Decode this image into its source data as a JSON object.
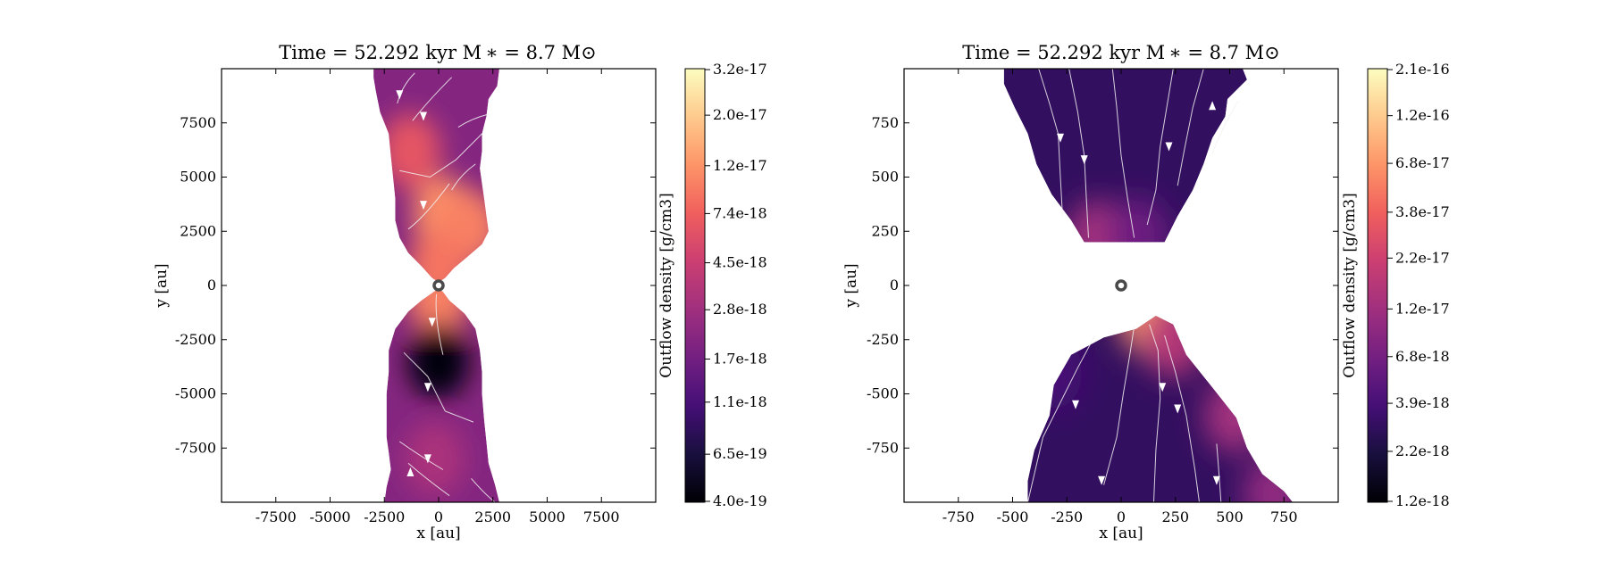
{
  "figure": {
    "background": "#ffffff"
  },
  "colormap": {
    "name": "magma",
    "stops": [
      "#000004",
      "#180f3d",
      "#440f76",
      "#721f81",
      "#9e2f7f",
      "#cd4071",
      "#f1605d",
      "#fd9668",
      "#feca8d",
      "#fcfdbf"
    ]
  },
  "chart_data": [
    {
      "type": "heatmap",
      "title": "Time = 52.292 kyr    M ∗ = 8.7 M⊙",
      "xlabel": "x [au]",
      "ylabel": "y [au]",
      "colorbar_label": "Outflow density [g/cm3]",
      "xlim": [
        -10000,
        10000
      ],
      "ylim": [
        -10000,
        10000
      ],
      "xticks": [
        -7500,
        -5000,
        -2500,
        0,
        2500,
        5000,
        7500
      ],
      "xtick_labels": [
        "-7500",
        "-5000",
        "-2500",
        "0",
        "2500",
        "5000",
        "7500"
      ],
      "yticks": [
        7500,
        5000,
        2500,
        0,
        -2500,
        -5000,
        -7500
      ],
      "ytick_labels": [
        "7500",
        "5000",
        "2500",
        "0",
        "-2500",
        "-5000",
        "-7500"
      ],
      "colorbar_tick_labels": [
        "3.2e-17",
        "2.0e-17",
        "1.2e-17",
        "7.4e-18",
        "4.5e-18",
        "2.8e-18",
        "1.7e-18",
        "1.1e-18",
        "6.5e-19",
        "4.0e-19"
      ],
      "colorbar_range": [
        4e-19,
        3.2e-17
      ],
      "colorbar_scale": "log",
      "star_position": [
        0,
        0
      ],
      "upper_lobe_outline": [
        [
          -3000,
          10000
        ],
        [
          2800,
          10000
        ],
        [
          2700,
          9200
        ],
        [
          2300,
          8600
        ],
        [
          2200,
          7800
        ],
        [
          2000,
          7000
        ],
        [
          2000,
          6200
        ],
        [
          1900,
          5400
        ],
        [
          2000,
          4700
        ],
        [
          2100,
          4000
        ],
        [
          2200,
          3200
        ],
        [
          2300,
          2500
        ],
        [
          2000,
          1900
        ],
        [
          1300,
          1300
        ],
        [
          700,
          800
        ],
        [
          300,
          350
        ],
        [
          0,
          150
        ],
        [
          -300,
          350
        ],
        [
          -800,
          900
        ],
        [
          -1400,
          1500
        ],
        [
          -1800,
          2200
        ],
        [
          -2000,
          3000
        ],
        [
          -2000,
          4000
        ],
        [
          -2100,
          5000
        ],
        [
          -2200,
          6000
        ],
        [
          -2300,
          7000
        ],
        [
          -2700,
          8000
        ],
        [
          -2900,
          9000
        ],
        [
          -3000,
          9600
        ]
      ],
      "lower_lobe_outline": [
        [
          -300,
          -350
        ],
        [
          0,
          -150
        ],
        [
          200,
          -300
        ],
        [
          500,
          -700
        ],
        [
          1200,
          -1300
        ],
        [
          1700,
          -2000
        ],
        [
          1900,
          -3000
        ],
        [
          2000,
          -4000
        ],
        [
          2000,
          -5000
        ],
        [
          2100,
          -6200
        ],
        [
          2200,
          -7200
        ],
        [
          2300,
          -8200
        ],
        [
          2600,
          -9200
        ],
        [
          2800,
          -10000
        ],
        [
          -2500,
          -10000
        ],
        [
          -2400,
          -9300
        ],
        [
          -2200,
          -8500
        ],
        [
          -2300,
          -7700
        ],
        [
          -2400,
          -7000
        ],
        [
          -2400,
          -6000
        ],
        [
          -2400,
          -5000
        ],
        [
          -2300,
          -4000
        ],
        [
          -2300,
          -3000
        ],
        [
          -2000,
          -2000
        ],
        [
          -1400,
          -1200
        ],
        [
          -800,
          -700
        ]
      ],
      "density_hotspots": [
        {
          "x": 200,
          "y": 3300,
          "log_density": -16.95
        },
        {
          "x": 1400,
          "y": 2700,
          "log_density": -17.0
        },
        {
          "x": -1300,
          "y": 6200,
          "log_density": -17.2
        },
        {
          "x": 0,
          "y": 800,
          "log_density": -17.05
        },
        {
          "x": 0,
          "y": -600,
          "log_density": -17.0
        },
        {
          "x": 0,
          "y": -3500,
          "log_density": -18.35
        },
        {
          "x": -200,
          "y": -8000,
          "log_density": -17.5
        }
      ],
      "streamlines": [
        [
          [
            -1100,
            9800
          ],
          [
            -1700,
            9200
          ],
          [
            -1900,
            8400
          ]
        ],
        [
          [
            600,
            9600
          ],
          [
            -500,
            8500
          ],
          [
            -1200,
            7600
          ]
        ],
        [
          [
            2300,
            7900
          ],
          [
            1500,
            7700
          ],
          [
            900,
            7300
          ]
        ],
        [
          [
            1700,
            5600
          ],
          [
            1000,
            5100
          ],
          [
            600,
            4400
          ]
        ],
        [
          [
            2000,
            7000
          ],
          [
            800,
            5800
          ],
          [
            -400,
            5000
          ],
          [
            -1800,
            5300
          ]
        ],
        [
          [
            -1400,
            2600
          ],
          [
            -600,
            3200
          ],
          [
            500,
            4700
          ]
        ],
        [
          [
            -100,
            -400
          ],
          [
            -200,
            -1500
          ],
          [
            200,
            -3200
          ]
        ],
        [
          [
            -1600,
            -3100
          ],
          [
            -500,
            -4200
          ],
          [
            300,
            -5800
          ],
          [
            1600,
            -6300
          ]
        ],
        [
          [
            -1800,
            -7200
          ],
          [
            -800,
            -7900
          ],
          [
            200,
            -8500
          ]
        ],
        [
          [
            -1400,
            -8200
          ],
          [
            -600,
            -8900
          ],
          [
            500,
            -9700
          ]
        ],
        [
          [
            1500,
            -8900
          ],
          [
            2100,
            -9600
          ],
          [
            2600,
            -10000
          ]
        ]
      ],
      "streamline_arrows": [
        {
          "x": -1800,
          "y": 8800,
          "direction": "down"
        },
        {
          "x": -700,
          "y": 7800,
          "direction": "down"
        },
        {
          "x": -700,
          "y": 3700,
          "direction": "down"
        },
        {
          "x": -300,
          "y": -1700,
          "direction": "down"
        },
        {
          "x": -500,
          "y": -4700,
          "direction": "down"
        },
        {
          "x": -500,
          "y": -8000,
          "direction": "down"
        },
        {
          "x": -1300,
          "y": -8600,
          "direction": "up"
        }
      ]
    },
    {
      "type": "heatmap",
      "title": "Time = 52.292 kyr    M ∗ = 8.7 M⊙",
      "xlabel": "x [au]",
      "ylabel": "y [au]",
      "colorbar_label": "Outflow density [g/cm3]",
      "xlim": [
        -1000,
        1000
      ],
      "ylim": [
        -1000,
        1000
      ],
      "xticks": [
        -750,
        -500,
        -250,
        0,
        250,
        500,
        750
      ],
      "xtick_labels": [
        "-750",
        "-500",
        "-250",
        "0",
        "250",
        "500",
        "750"
      ],
      "yticks": [
        750,
        500,
        250,
        0,
        -250,
        -500,
        -750
      ],
      "ytick_labels": [
        "750",
        "500",
        "250",
        "0",
        "-250",
        "-500",
        "-750"
      ],
      "colorbar_tick_labels": [
        "2.1e-16",
        "1.2e-16",
        "6.8e-17",
        "3.8e-17",
        "2.2e-17",
        "1.2e-17",
        "6.8e-18",
        "3.9e-18",
        "2.2e-18",
        "1.2e-18"
      ],
      "colorbar_range": [
        1.2e-18,
        2.1e-16
      ],
      "colorbar_scale": "log",
      "star_position": [
        0,
        0
      ],
      "upper_lobe_outline": [
        [
          -540,
          1000
        ],
        [
          560,
          1000
        ],
        [
          580,
          950
        ],
        [
          490,
          860
        ],
        [
          480,
          780
        ],
        [
          420,
          680
        ],
        [
          380,
          560
        ],
        [
          330,
          440
        ],
        [
          260,
          320
        ],
        [
          200,
          200
        ],
        [
          -170,
          200
        ],
        [
          -230,
          300
        ],
        [
          -320,
          420
        ],
        [
          -390,
          560
        ],
        [
          -430,
          700
        ],
        [
          -490,
          820
        ],
        [
          -540,
          930
        ]
      ],
      "lower_lobe_outline": [
        [
          -430,
          -1000
        ],
        [
          -430,
          -900
        ],
        [
          -400,
          -760
        ],
        [
          -330,
          -600
        ],
        [
          -310,
          -460
        ],
        [
          -230,
          -320
        ],
        [
          -80,
          -240
        ],
        [
          70,
          -200
        ],
        [
          160,
          -140
        ],
        [
          240,
          -180
        ],
        [
          300,
          -320
        ],
        [
          420,
          -470
        ],
        [
          530,
          -610
        ],
        [
          580,
          -750
        ],
        [
          650,
          -870
        ],
        [
          750,
          -950
        ],
        [
          790,
          -1000
        ]
      ],
      "density_hotspots": [
        {
          "x": -110,
          "y": 220,
          "log_density": -16.9
        },
        {
          "x": 80,
          "y": 230,
          "log_density": -17.2
        },
        {
          "x": 130,
          "y": -150,
          "log_density": -16.2
        },
        {
          "x": 240,
          "y": -250,
          "log_density": -16.8
        },
        {
          "x": 520,
          "y": -600,
          "log_density": -16.9
        },
        {
          "x": 700,
          "y": -960,
          "log_density": -17.0
        },
        {
          "x": -320,
          "y": -400,
          "log_density": -17.4
        }
      ],
      "streamlines": [
        [
          [
            -380,
            1000
          ],
          [
            -330,
            840
          ],
          [
            -290,
            700
          ],
          [
            -280,
            500
          ],
          [
            -270,
            320
          ]
        ],
        [
          [
            -240,
            1000
          ],
          [
            -200,
            800
          ],
          [
            -170,
            600
          ],
          [
            -160,
            400
          ],
          [
            -150,
            220
          ]
        ],
        [
          [
            -40,
            1000
          ],
          [
            -20,
            820
          ],
          [
            0,
            600
          ],
          [
            30,
            400
          ],
          [
            60,
            220
          ]
        ],
        [
          [
            240,
            1000
          ],
          [
            210,
            820
          ],
          [
            180,
            640
          ],
          [
            160,
            440
          ],
          [
            120,
            280
          ]
        ],
        [
          [
            380,
            1000
          ],
          [
            330,
            820
          ],
          [
            290,
            620
          ],
          [
            260,
            460
          ]
        ],
        [
          [
            540,
            850
          ],
          [
            480,
            760
          ],
          [
            420,
            610
          ]
        ],
        [
          [
            -120,
            -230
          ],
          [
            -200,
            -380
          ],
          [
            -260,
            -500
          ],
          [
            -360,
            -700
          ],
          [
            -430,
            -1000
          ]
        ],
        [
          [
            60,
            -190
          ],
          [
            40,
            -320
          ],
          [
            10,
            -500
          ],
          [
            -20,
            -700
          ],
          [
            -80,
            -920
          ]
        ],
        [
          [
            130,
            -180
          ],
          [
            170,
            -300
          ],
          [
            180,
            -520
          ],
          [
            160,
            -760
          ],
          [
            150,
            -1000
          ]
        ],
        [
          [
            200,
            -230
          ],
          [
            250,
            -400
          ],
          [
            300,
            -600
          ],
          [
            340,
            -850
          ],
          [
            360,
            -1000
          ]
        ],
        [
          [
            440,
            -730
          ],
          [
            450,
            -850
          ],
          [
            460,
            -1000
          ]
        ]
      ],
      "streamline_arrows": [
        {
          "x": -280,
          "y": 680,
          "direction": "down"
        },
        {
          "x": -170,
          "y": 580,
          "direction": "down"
        },
        {
          "x": 220,
          "y": 640,
          "direction": "down"
        },
        {
          "x": 420,
          "y": 830,
          "direction": "up"
        },
        {
          "x": -210,
          "y": -550,
          "direction": "down"
        },
        {
          "x": 190,
          "y": -470,
          "direction": "down"
        },
        {
          "x": 260,
          "y": -570,
          "direction": "down"
        },
        {
          "x": -90,
          "y": -900,
          "direction": "down"
        },
        {
          "x": 440,
          "y": -900,
          "direction": "down"
        }
      ]
    }
  ]
}
